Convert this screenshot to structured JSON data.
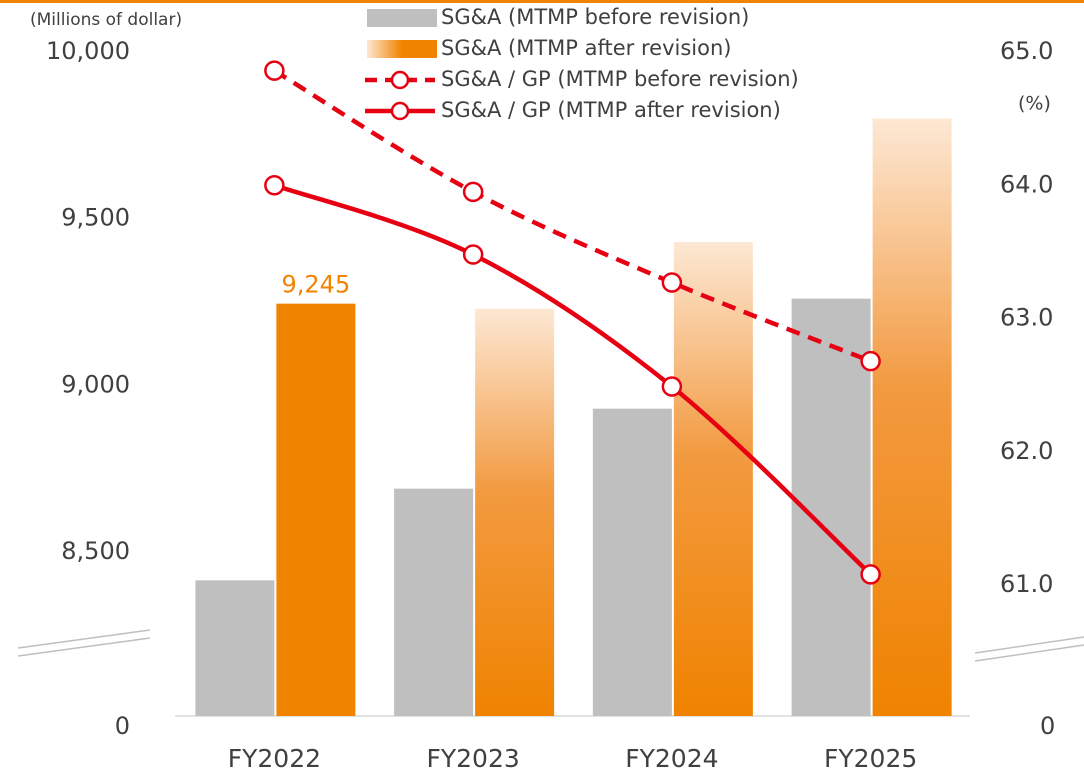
{
  "chart_data": {
    "type": "bar",
    "y_axis_label": "(Millions of dollar)",
    "y2_axis_label": "(%)",
    "categories": [
      "FY2022",
      "FY2023",
      "FY2024",
      "FY2025"
    ],
    "ylim": [
      0,
      10000
    ],
    "yticks": [
      {
        "value": 0,
        "label": "0"
      },
      {
        "value": 8500,
        "label": "8,500"
      },
      {
        "value": 9000,
        "label": "9,000"
      },
      {
        "value": 9500,
        "label": "9,500"
      },
      {
        "value": 10000,
        "label": "10,000"
      }
    ],
    "y2lim": [
      0,
      65
    ],
    "y2ticks": [
      {
        "value": 0,
        "label": "0"
      },
      {
        "value": 61,
        "label": "61.0"
      },
      {
        "value": 62,
        "label": "62.0"
      },
      {
        "value": 63,
        "label": "63.0"
      },
      {
        "value": 64,
        "label": "64.0"
      },
      {
        "value": 65,
        "label": "65.0"
      }
    ],
    "broken_axis": true,
    "series": [
      {
        "name": "SG&A (MTMP before revision)",
        "type": "bar",
        "color": "#bfbfbf",
        "values": [
          8415,
          8690,
          8930,
          9260
        ]
      },
      {
        "name": "SG&A (MTMP after revision)",
        "type": "bar",
        "color": "#f08300",
        "values": [
          9245,
          9230,
          9430,
          9800
        ],
        "value_labels": [
          "9,245",
          null,
          null,
          null
        ]
      },
      {
        "name": "SG&A / GP (MTMP before revision)",
        "type": "line",
        "axis": "y2",
        "color": "#e60012",
        "dashed": true,
        "values": [
          64.86,
          63.95,
          63.27,
          62.68
        ]
      },
      {
        "name": "SG&A / GP (MTMP after revision)",
        "type": "line",
        "axis": "y2",
        "color": "#e60012",
        "dashed": false,
        "values": [
          64.0,
          63.48,
          62.49,
          61.08
        ]
      }
    ]
  }
}
